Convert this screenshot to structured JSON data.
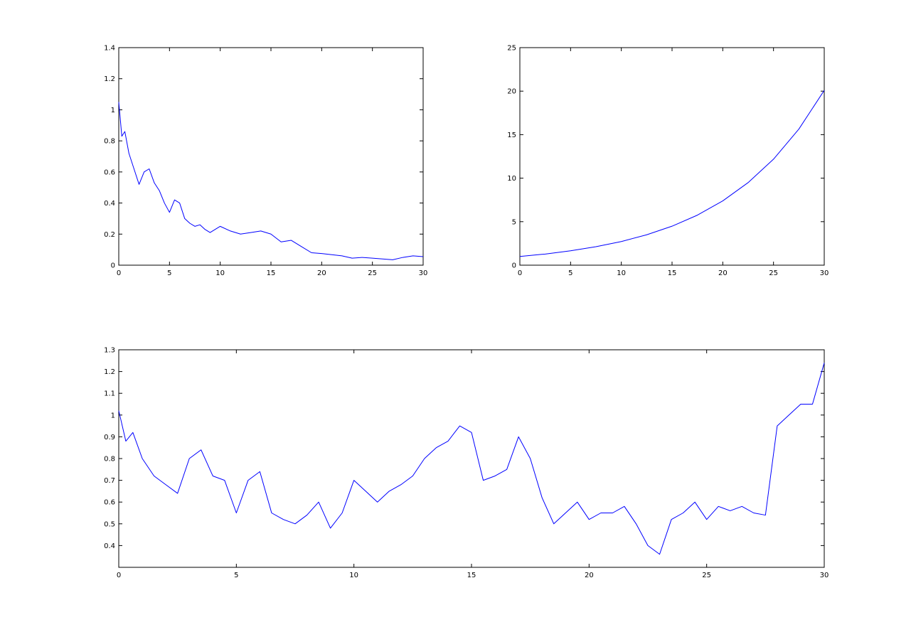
{
  "chart_data": [
    {
      "type": "line",
      "grid": false,
      "xlim": [
        0,
        30
      ],
      "ylim": [
        0,
        1.4
      ],
      "x_ticks": [
        "0",
        "5",
        "10",
        "15",
        "20",
        "25",
        "30"
      ],
      "y_ticks": [
        "0",
        "0.2",
        "0.4",
        "0.6",
        "0.8",
        "1",
        "1.2",
        "1.4"
      ],
      "series": [
        {
          "color": "#0000ff",
          "x": [
            0,
            0.3,
            0.6,
            1,
            1.5,
            2,
            2.5,
            3,
            3.5,
            4,
            4.5,
            5,
            5.5,
            6,
            6.5,
            7,
            7.5,
            8,
            8.5,
            9,
            10,
            11,
            12,
            13,
            14,
            15,
            16,
            17,
            18,
            19,
            20,
            22,
            23,
            24,
            25,
            26,
            27,
            28,
            29,
            30
          ],
          "y": [
            1.05,
            0.83,
            0.86,
            0.72,
            0.62,
            0.52,
            0.6,
            0.62,
            0.53,
            0.48,
            0.4,
            0.34,
            0.42,
            0.4,
            0.3,
            0.27,
            0.25,
            0.26,
            0.23,
            0.21,
            0.25,
            0.22,
            0.2,
            0.21,
            0.22,
            0.2,
            0.15,
            0.16,
            0.12,
            0.08,
            0.075,
            0.06,
            0.045,
            0.05,
            0.045,
            0.04,
            0.035,
            0.05,
            0.06,
            0.055
          ]
        }
      ]
    },
    {
      "type": "line",
      "grid": false,
      "xlim": [
        0,
        30
      ],
      "ylim": [
        0,
        25
      ],
      "x_ticks": [
        "0",
        "5",
        "10",
        "15",
        "20",
        "25",
        "30"
      ],
      "y_ticks": [
        "0",
        "5",
        "10",
        "15",
        "20",
        "25"
      ],
      "series": [
        {
          "color": "#0000ff",
          "x": [
            0,
            2.5,
            5,
            7.5,
            10,
            12.5,
            15,
            17.5,
            20,
            22.5,
            25,
            27.5,
            30
          ],
          "y": [
            1.0,
            1.28,
            1.65,
            2.12,
            2.72,
            3.49,
            4.48,
            5.75,
            7.39,
            9.49,
            12.18,
            15.64,
            20.09
          ]
        }
      ]
    },
    {
      "type": "line",
      "grid": false,
      "xlim": [
        0,
        30
      ],
      "ylim": [
        0.3,
        1.3
      ],
      "x_ticks": [
        "0",
        "5",
        "10",
        "15",
        "20",
        "25",
        "30"
      ],
      "y_ticks": [
        "0.4",
        "0.5",
        "0.6",
        "0.7",
        "0.8",
        "0.9",
        "1",
        "1.1",
        "1.2",
        "1.3"
      ],
      "series": [
        {
          "color": "#0000ff",
          "x": [
            0,
            0.3,
            0.6,
            1,
            1.5,
            2,
            2.5,
            3,
            3.5,
            4,
            4.5,
            5,
            5.5,
            6,
            6.5,
            7,
            7.5,
            8,
            8.5,
            9,
            9.5,
            10,
            10.5,
            11,
            11.5,
            12,
            12.5,
            13,
            13.5,
            14,
            14.5,
            15,
            15.5,
            16,
            16.5,
            17,
            17.5,
            18,
            18.5,
            19,
            19.5,
            20,
            20.5,
            21,
            21.5,
            22,
            22.5,
            23,
            23.5,
            24,
            24.5,
            25,
            25.5,
            26,
            26.5,
            27,
            27.5,
            28,
            28.5,
            29,
            29.5,
            30
          ],
          "y": [
            1.02,
            0.88,
            0.92,
            0.8,
            0.72,
            0.68,
            0.64,
            0.8,
            0.84,
            0.72,
            0.7,
            0.55,
            0.7,
            0.74,
            0.55,
            0.52,
            0.5,
            0.54,
            0.6,
            0.48,
            0.55,
            0.7,
            0.65,
            0.6,
            0.65,
            0.68,
            0.72,
            0.8,
            0.85,
            0.88,
            0.95,
            0.92,
            0.7,
            0.72,
            0.75,
            0.9,
            0.8,
            0.62,
            0.5,
            0.55,
            0.6,
            0.52,
            0.55,
            0.55,
            0.58,
            0.5,
            0.4,
            0.36,
            0.52,
            0.55,
            0.6,
            0.52,
            0.58,
            0.56,
            0.58,
            0.55,
            0.54,
            0.95,
            1.0,
            1.05,
            1.05,
            1.24
          ]
        }
      ]
    }
  ]
}
